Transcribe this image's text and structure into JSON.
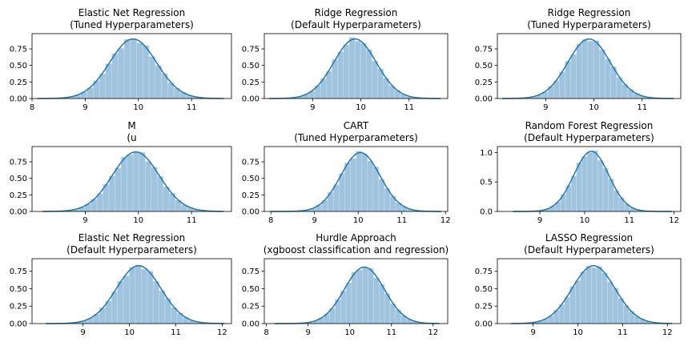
{
  "chart_data": [
    {
      "type": "histogram",
      "title_lines": [
        "Elastic Net Regression",
        "(Tuned Hyperparameters)"
      ],
      "xlim": [
        8.0,
        11.75
      ],
      "ylim": [
        0,
        0.98
      ],
      "xticks": [
        8,
        9,
        10,
        11
      ],
      "xtick_labels": [
        "8",
        "9",
        "10",
        "11"
      ],
      "yticks": [
        0.0,
        0.25,
        0.5,
        0.75
      ],
      "ytick_labels": [
        "0.00",
        "0.25",
        "0.50",
        "0.75"
      ],
      "mean": 9.9,
      "sd": 0.44,
      "peak": 0.9,
      "kde_start": 8.1,
      "kde_end": 11.6
    },
    {
      "type": "histogram",
      "title_lines": [
        "Ridge Regression",
        "(Default Hyperparameters)"
      ],
      "xlim": [
        8.0,
        11.8
      ],
      "ylim": [
        0,
        0.98
      ],
      "xticks": [
        9,
        10,
        11
      ],
      "xtick_labels": [
        "9",
        "10",
        "11"
      ],
      "yticks": [
        0.0,
        0.25,
        0.5,
        0.75
      ],
      "ytick_labels": [
        "0.00",
        "0.25",
        "0.50",
        "0.75"
      ],
      "mean": 9.88,
      "sd": 0.44,
      "peak": 0.9,
      "kde_start": 8.1,
      "kde_end": 11.65
    },
    {
      "type": "histogram",
      "title_lines": [
        "Ridge Regression",
        "(Tuned Hyperparameters)"
      ],
      "xlim": [
        8.0,
        11.8
      ],
      "ylim": [
        0,
        0.98
      ],
      "xticks": [
        9,
        10,
        11
      ],
      "xtick_labels": [
        "9",
        "10",
        "11"
      ],
      "yticks": [
        0.0,
        0.25,
        0.5,
        0.75
      ],
      "ytick_labels": [
        "0.00",
        "0.25",
        "0.50",
        "0.75"
      ],
      "mean": 9.9,
      "sd": 0.44,
      "peak": 0.9,
      "kde_start": 8.1,
      "kde_end": 11.65
    },
    {
      "type": "histogram",
      "title_lines": [
        "M",
        "(u"
      ],
      "xlim": [
        8.0,
        11.75
      ],
      "ylim": [
        0,
        0.98
      ],
      "xticks": [
        9,
        10,
        11
      ],
      "xtick_labels": [
        "9",
        "10",
        "11"
      ],
      "yticks": [
        0.0,
        0.25,
        0.5,
        0.75
      ],
      "ytick_labels": [
        "0.00",
        "0.25",
        "0.50",
        "0.75"
      ],
      "mean": 9.95,
      "sd": 0.44,
      "peak": 0.9,
      "kde_start": 8.2,
      "kde_end": 11.6
    },
    {
      "type": "histogram",
      "title_lines": [
        "CART",
        "(Tuned Hyperparameters)"
      ],
      "xlim": [
        7.85,
        12.05
      ],
      "ylim": [
        0,
        0.98
      ],
      "xticks": [
        8,
        9,
        10,
        11,
        12
      ],
      "xtick_labels": [
        "8",
        "9",
        "10",
        "11",
        "12"
      ],
      "yticks": [
        0.0,
        0.25,
        0.5,
        0.75
      ],
      "ytick_labels": [
        "0.00",
        "0.25",
        "0.50",
        "0.75"
      ],
      "mean": 10.05,
      "sd": 0.45,
      "peak": 0.89,
      "kde_start": 8.0,
      "kde_end": 11.9
    },
    {
      "type": "histogram",
      "title_lines": [
        "Random Forest Regression",
        "(Default Hyperparameters)"
      ],
      "xlim": [
        8.05,
        12.15
      ],
      "ylim": [
        0,
        1.1
      ],
      "xticks": [
        9,
        10,
        11,
        12
      ],
      "xtick_labels": [
        "9",
        "10",
        "11",
        "12"
      ],
      "yticks": [
        0.0,
        0.5,
        1.0
      ],
      "ytick_labels": [
        "0.0",
        "0.5",
        "1.0"
      ],
      "mean": 10.15,
      "sd": 0.39,
      "peak": 1.02,
      "kde_start": 8.4,
      "kde_end": 11.95
    },
    {
      "type": "histogram",
      "title_lines": [
        "Elastic Net Regression",
        "(Default Hyperparameters)"
      ],
      "xlim": [
        7.9,
        12.2
      ],
      "ylim": [
        0,
        0.93
      ],
      "xticks": [
        9,
        10,
        11,
        12
      ],
      "xtick_labels": [
        "9",
        "10",
        "11",
        "12"
      ],
      "yticks": [
        0.0,
        0.25,
        0.5,
        0.75
      ],
      "ytick_labels": [
        "0.00",
        "0.25",
        "0.50",
        "0.75"
      ],
      "mean": 10.2,
      "sd": 0.48,
      "peak": 0.83,
      "kde_start": 8.2,
      "kde_end": 12.05
    },
    {
      "type": "histogram",
      "title_lines": [
        "Hurdle Approach",
        "(xgboost classification and regression)"
      ],
      "xlim": [
        7.95,
        12.35
      ],
      "ylim": [
        0,
        0.93
      ],
      "xticks": [
        8,
        9,
        10,
        11,
        12
      ],
      "xtick_labels": [
        "8",
        "9",
        "10",
        "11",
        "12"
      ],
      "yticks": [
        0.0,
        0.25,
        0.5,
        0.75
      ],
      "ytick_labels": [
        "0.00",
        "0.25",
        "0.50",
        "0.75"
      ],
      "mean": 10.35,
      "sd": 0.48,
      "peak": 0.81,
      "kde_start": 8.2,
      "kde_end": 12.15
    },
    {
      "type": "histogram",
      "title_lines": [
        "LASSO Regression",
        "(Default Hyperparameters)"
      ],
      "xlim": [
        8.2,
        12.3
      ],
      "ylim": [
        0,
        0.93
      ],
      "xticks": [
        9,
        10,
        11,
        12
      ],
      "xtick_labels": [
        "9",
        "10",
        "11",
        "12"
      ],
      "yticks": [
        0.0,
        0.25,
        0.5,
        0.75
      ],
      "ytick_labels": [
        "0.00",
        "0.25",
        "0.50",
        "0.75"
      ],
      "mean": 10.35,
      "sd": 0.48,
      "peak": 0.83,
      "kde_start": 8.5,
      "kde_end": 12.1
    }
  ],
  "colors": {
    "bar_fill": "#a1c4de",
    "bar_edge": "#d2e3f0",
    "kde_line": "#1f77b4",
    "axis": "#000000"
  }
}
